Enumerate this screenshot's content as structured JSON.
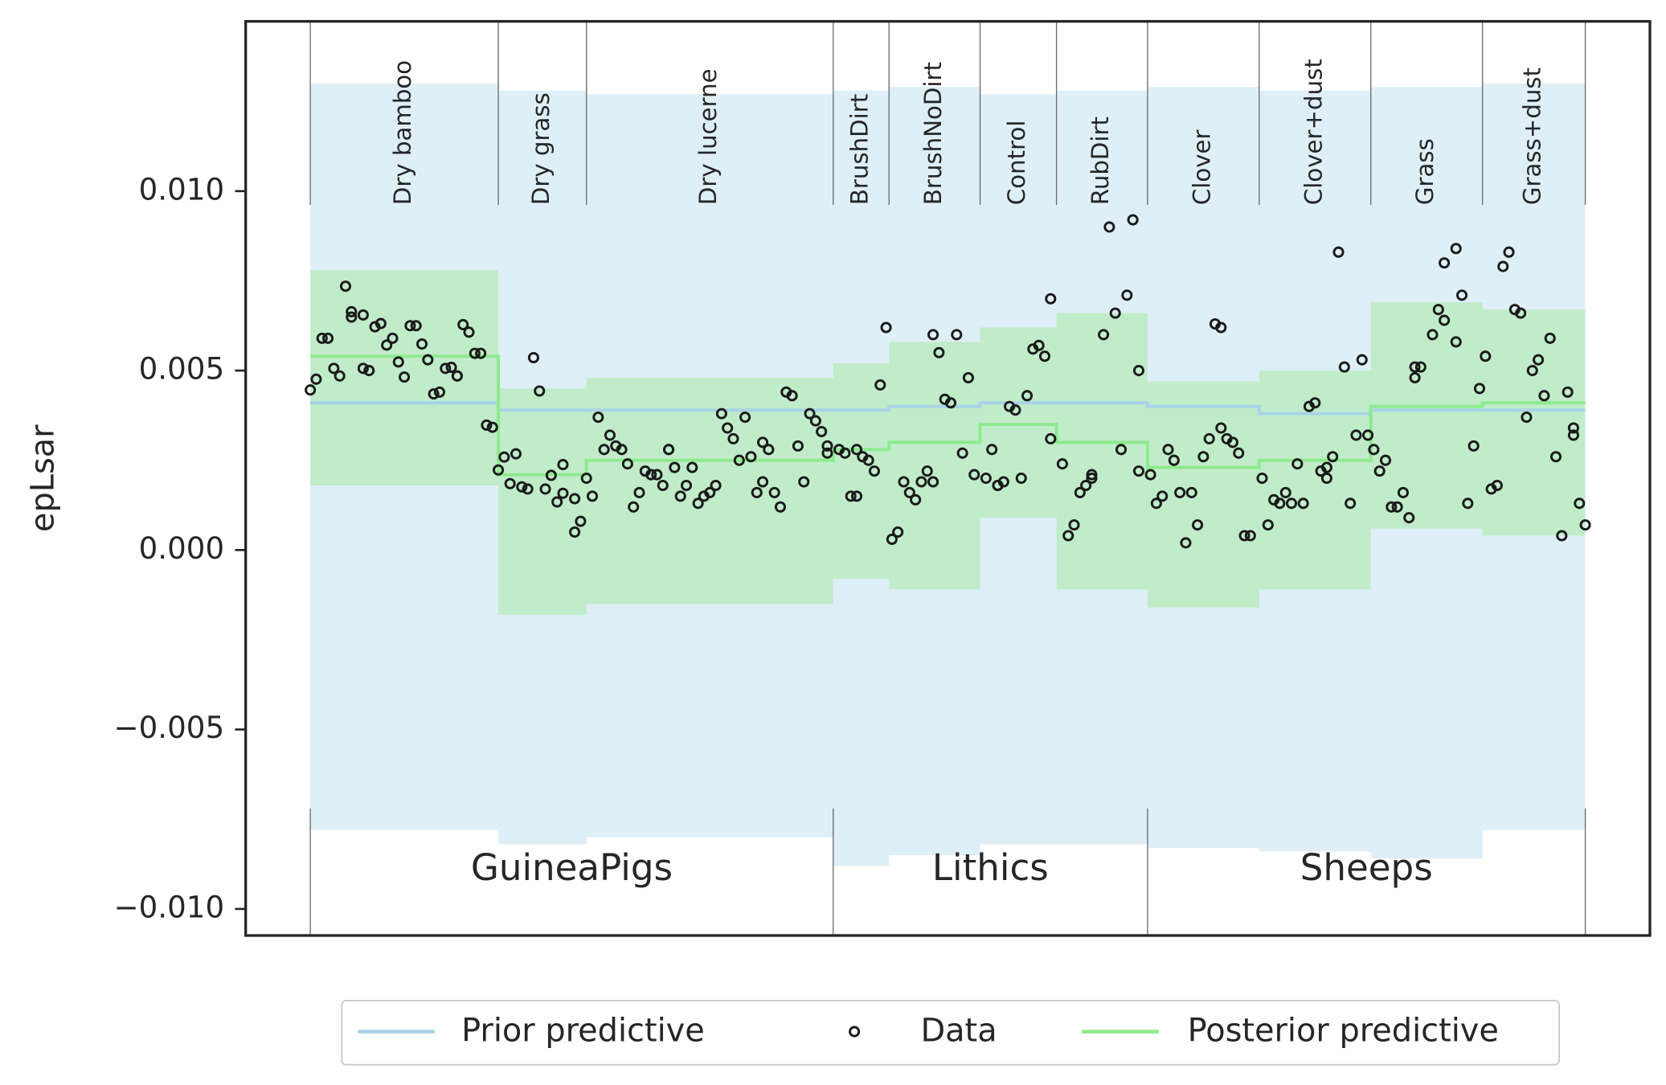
{
  "chart_data": {
    "type": "predictive",
    "y_label": "epLsar",
    "xlim": [
      -11,
      228
    ],
    "ylim": [
      -0.01074,
      0.01473
    ],
    "yticks": [
      {
        "value": -0.01,
        "label": "−0.010"
      },
      {
        "value": -0.005,
        "label": "−0.005"
      },
      {
        "value": 0,
        "label": "0.000"
      },
      0.005,
      {
        "value": 0.01,
        "label": "0.010"
      }
    ],
    "groups": [
      {
        "name": "Dry bamboo",
        "start": 0,
        "end": 32
      },
      {
        "name": "Dry grass",
        "start": 32,
        "end": 47
      },
      {
        "name": "Dry lucerne",
        "start": 47,
        "end": 89
      },
      {
        "name": "BrushDirt",
        "start": 89,
        "end": 98.5
      },
      {
        "name": "BrushNoDirt",
        "start": 98.5,
        "end": 114
      },
      {
        "name": "Control",
        "start": 114,
        "end": 127
      },
      {
        "name": "RubDirt",
        "start": 127,
        "end": 142.5
      },
      {
        "name": "Clover",
        "start": 142.5,
        "end": 161.5
      },
      {
        "name": "Clover+dust",
        "start": 161.5,
        "end": 180.5
      },
      {
        "name": "Grass",
        "start": 180.5,
        "end": 199.5
      },
      {
        "name": "Grass+dust",
        "start": 199.5,
        "end": 217
      }
    ],
    "outer_groups": [
      {
        "name": "GuineaPigs",
        "start": 0,
        "end": 89
      },
      {
        "name": "Lithics",
        "start": 89,
        "end": 142.5
      },
      {
        "name": "Sheeps",
        "start": 142.5,
        "end": 217
      }
    ],
    "series": [
      {
        "name": "Prior predictive",
        "color": "#a9d3e6",
        "band_color": "#deeff7",
        "x": [
          0,
          32,
          32,
          47,
          47,
          89,
          89,
          98.5,
          98.5,
          114,
          114,
          127,
          127,
          142.5,
          142.5,
          161.5,
          161.5,
          180.5,
          180.5,
          199.5,
          199.5,
          217
        ],
        "values": [
          0.0041,
          0.0041,
          0.0039,
          0.0039,
          0.0039,
          0.0039,
          0.0039,
          0.0039,
          0.004,
          0.004,
          0.0041,
          0.0041,
          0.0041,
          0.0041,
          0.004,
          0.004,
          0.0038,
          0.0038,
          0.0039,
          0.0039,
          0.0039,
          0.0039
        ],
        "upper": [
          0.013,
          0.013,
          0.0128,
          0.0128,
          0.0127,
          0.0127,
          0.0128,
          0.0128,
          0.0129,
          0.0129,
          0.0127,
          0.0127,
          0.0128,
          0.0128,
          0.0129,
          0.0129,
          0.0128,
          0.0128,
          0.0129,
          0.0129,
          0.013,
          0.013
        ],
        "lower": [
          -0.0078,
          -0.0078,
          -0.0082,
          -0.0082,
          -0.008,
          -0.008,
          -0.0088,
          -0.0088,
          -0.0085,
          -0.0085,
          -0.0082,
          -0.0082,
          -0.0082,
          -0.0082,
          -0.0083,
          -0.0083,
          -0.0084,
          -0.0084,
          -0.0086,
          -0.0086,
          -0.0078,
          -0.0078
        ]
      },
      {
        "name": "Data",
        "color": "#1a1a1a",
        "x": [
          0,
          1,
          2,
          3,
          4,
          5,
          6,
          7,
          7,
          9,
          9,
          10,
          11,
          12,
          13,
          14,
          15,
          16,
          17,
          18,
          19,
          20,
          21,
          22,
          23,
          24,
          25,
          25,
          26,
          27,
          28,
          29,
          30,
          31,
          32,
          33,
          34,
          35,
          36,
          37,
          38,
          39,
          40,
          41,
          42,
          43,
          43,
          45,
          45,
          46,
          47,
          48,
          49,
          50,
          51,
          52,
          53,
          54,
          55,
          56,
          57,
          58,
          59,
          60,
          61,
          61,
          62,
          63,
          64,
          65,
          66,
          67,
          68,
          69,
          70,
          71,
          72,
          73,
          74,
          75,
          76,
          77,
          77,
          78,
          79,
          80,
          81,
          82,
          83,
          84,
          85,
          86,
          87,
          88,
          88,
          90,
          91,
          92,
          93,
          93,
          94,
          95,
          96,
          97,
          98,
          99,
          100,
          101,
          102,
          103,
          104,
          105,
          106,
          106,
          107,
          108,
          109,
          110,
          111,
          112,
          113,
          115,
          116,
          117,
          117,
          118,
          119,
          120,
          121,
          122,
          123,
          124,
          125,
          126,
          126,
          128,
          129,
          130,
          131,
          132,
          133,
          133,
          135,
          136,
          137,
          138,
          139,
          140,
          141,
          141,
          143,
          144,
          145,
          146,
          147,
          148,
          149,
          150,
          151,
          152,
          153,
          154,
          155,
          155,
          156,
          157,
          158,
          159,
          160,
          162,
          163,
          164,
          165,
          166,
          167,
          168,
          169,
          170,
          171,
          172,
          173,
          173,
          174,
          175,
          176,
          177,
          178,
          179,
          180,
          181,
          182,
          183,
          184,
          185,
          186,
          187,
          188,
          188,
          189,
          191,
          192,
          193,
          193,
          195,
          195,
          196,
          197,
          198,
          199,
          200,
          201,
          202,
          203,
          204,
          205,
          206,
          207,
          208,
          209,
          210,
          211,
          212,
          213,
          214,
          215,
          215,
          216,
          217
        ],
        "values": [
          0.00446,
          0.00476,
          0.0059,
          0.0059,
          0.00506,
          0.00485,
          0.00735,
          0.00664,
          0.00649,
          0.00655,
          0.00506,
          0.005,
          0.00622,
          0.00631,
          0.00571,
          0.0059,
          0.00524,
          0.00482,
          0.00625,
          0.00625,
          0.00574,
          0.0053,
          0.00435,
          0.0044,
          0.00506,
          0.00509,
          0.00485,
          0.00485,
          0.00628,
          0.00607,
          0.00548,
          0.00548,
          0.00348,
          0.00342,
          0.00223,
          0.00259,
          0.00185,
          0.00268,
          0.00176,
          0.0017,
          0.00536,
          0.00443,
          0.0017,
          0.00208,
          0.00134,
          0.00238,
          0.00158,
          0.0005,
          0.00143,
          0.0008,
          0.002,
          0.0015,
          0.0037,
          0.0028,
          0.0032,
          0.0029,
          0.0028,
          0.0024,
          0.0012,
          0.0016,
          0.0022,
          0.0021,
          0.0021,
          0.0018,
          0.0028,
          0.0028,
          0.0023,
          0.0015,
          0.0018,
          0.0023,
          0.0013,
          0.0015,
          0.0016,
          0.0018,
          0.0038,
          0.0034,
          0.0031,
          0.0025,
          0.0037,
          0.0026,
          0.0016,
          0.0019,
          0.003,
          0.0028,
          0.0016,
          0.0012,
          0.0044,
          0.0043,
          0.0029,
          0.0019,
          0.0038,
          0.0036,
          0.0033,
          0.0029,
          0.0027,
          0.0028,
          0.0027,
          0.0015,
          0.0015,
          0.0028,
          0.0026,
          0.0025,
          0.0022,
          0.0046,
          0.0062,
          0.0003,
          0.0005,
          0.0019,
          0.0016,
          0.0014,
          0.0019,
          0.0022,
          0.0019,
          0.006,
          0.0055,
          0.0042,
          0.0041,
          0.006,
          0.0027,
          0.0048,
          0.0021,
          0.002,
          0.0028,
          0.0018,
          0.0018,
          0.0019,
          0.004,
          0.0039,
          0.002,
          0.0043,
          0.0056,
          0.0057,
          0.0054,
          0.007,
          0.0031,
          0.0024,
          0.0004,
          0.0007,
          0.0016,
          0.0018,
          0.0021,
          0.002,
          0.006,
          0.009,
          0.0066,
          0.0028,
          0.0071,
          0.0092,
          0.005,
          0.0022,
          0.0021,
          0.0013,
          0.0015,
          0.0028,
          0.0025,
          0.0016,
          0.0002,
          0.0016,
          0.0007,
          0.0026,
          0.0031,
          0.0063,
          0.0062,
          0.0034,
          0.0031,
          0.003,
          0.0027,
          0.0004,
          0.0004,
          0.002,
          0.0007,
          0.0014,
          0.0013,
          0.0016,
          0.0013,
          0.0024,
          0.0013,
          0.004,
          0.0041,
          0.0022,
          0.0023,
          0.002,
          0.0026,
          0.0083,
          0.0051,
          0.0013,
          0.0032,
          0.0053,
          0.0032,
          0.0028,
          0.0022,
          0.0025,
          0.0012,
          0.0012,
          0.0016,
          0.0009,
          0.0048,
          0.0051,
          0.0051,
          0.006,
          0.0067,
          0.0064,
          0.008,
          0.0084,
          0.0058,
          0.0071,
          0.0013,
          0.0029,
          0.0045,
          0.0054,
          0.0017,
          0.0018,
          0.0079,
          0.0083,
          0.0067,
          0.0066,
          0.0037,
          0.005,
          0.0053,
          0.0043,
          0.0059,
          0.0026,
          0.0004,
          0.0044,
          0.0034,
          0.0032,
          0.0013,
          0.0007
        ]
      },
      {
        "name": "Posterior predictive",
        "color": "#8eea8e",
        "band_color": "#c1ecca",
        "x": [
          0,
          32,
          32,
          47,
          47,
          89,
          89,
          98.5,
          98.5,
          114,
          114,
          127,
          127,
          142.5,
          142.5,
          161.5,
          161.5,
          180.5,
          180.5,
          199.5,
          199.5,
          217
        ],
        "values": [
          0.0054,
          0.0054,
          0.0021,
          0.0021,
          0.0025,
          0.0025,
          0.0028,
          0.0028,
          0.003,
          0.003,
          0.0035,
          0.0035,
          0.003,
          0.003,
          0.0023,
          0.0023,
          0.0025,
          0.0025,
          0.004,
          0.004,
          0.0041,
          0.0041
        ],
        "upper": [
          0.0078,
          0.0078,
          0.0045,
          0.0045,
          0.0048,
          0.0048,
          0.0052,
          0.0052,
          0.0058,
          0.0058,
          0.0062,
          0.0062,
          0.0066,
          0.0066,
          0.0047,
          0.0047,
          0.005,
          0.005,
          0.0069,
          0.0069,
          0.0067,
          0.0067
        ],
        "lower": [
          0.0018,
          0.0018,
          -0.0018,
          -0.0018,
          -0.0015,
          -0.0015,
          -0.0008,
          -0.0008,
          -0.0011,
          -0.0011,
          0.0009,
          0.0009,
          -0.0011,
          -0.0011,
          -0.0016,
          -0.0016,
          -0.0011,
          -0.0011,
          0.0006,
          0.0006,
          0.0004,
          0.0004
        ]
      }
    ]
  }
}
